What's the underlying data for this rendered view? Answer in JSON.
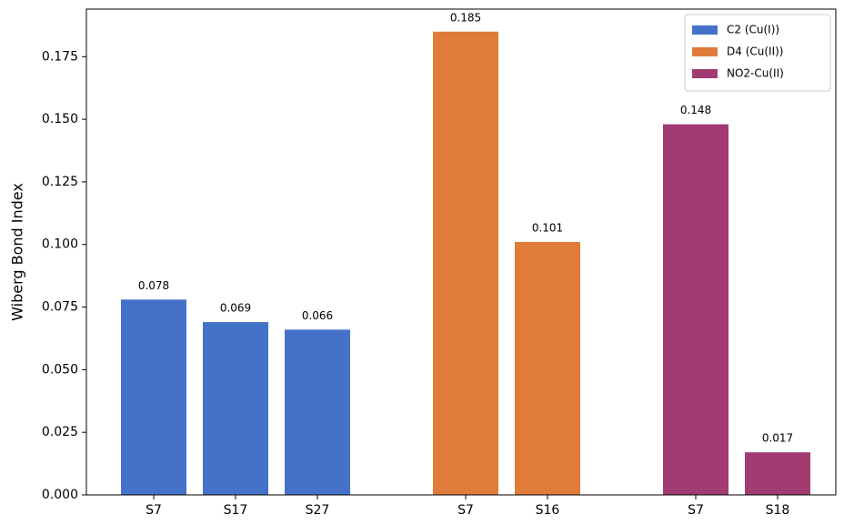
{
  "chart_data": {
    "type": "bar",
    "y_label": "Wiberg Bond Index",
    "categories": [
      "S7",
      "S17",
      "S27",
      null,
      "S7",
      "S16",
      null,
      "S7",
      "S18"
    ],
    "series": [
      {
        "name": "C2 (Cu(I))",
        "color": "#4472c9",
        "values": [
          0.078,
          0.069,
          0.066,
          null,
          null,
          null,
          null,
          null,
          null
        ]
      },
      {
        "name": "D4 (Cu(II))",
        "color": "#e07b39",
        "values": [
          null,
          null,
          null,
          null,
          0.185,
          0.101,
          null,
          null,
          null
        ]
      },
      {
        "name": "NO2-Cu(II)",
        "color": "#a23b72",
        "values": [
          null,
          null,
          null,
          null,
          null,
          null,
          null,
          0.148,
          0.017
        ]
      }
    ],
    "ylim": [
      0,
      0.194
    ],
    "yticks": [
      {
        "value": 0,
        "label": "0.000"
      },
      0.025,
      {
        "value": 0.05,
        "label": "0.050"
      },
      0.075,
      {
        "value": 0.1,
        "label": "0.100"
      },
      0.125,
      {
        "value": 0.15,
        "label": "0.150"
      },
      0.175
    ],
    "legend": "upper right"
  }
}
